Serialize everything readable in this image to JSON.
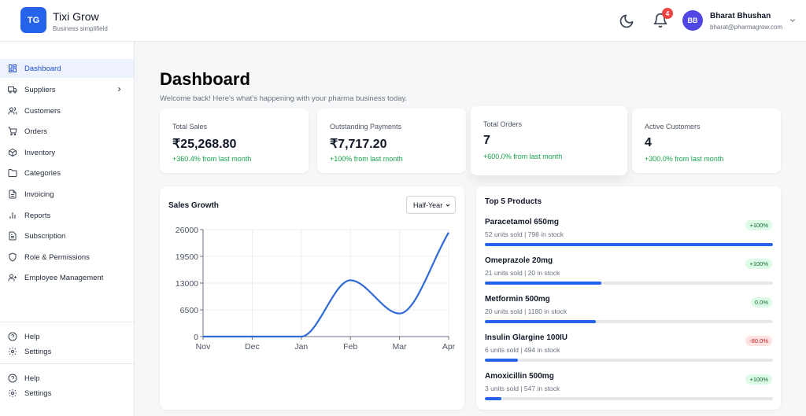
{
  "header": {
    "logo_initials": "TG",
    "brand_name": "Tixi Grow",
    "brand_tagline": "Business simplifield",
    "notification_count": "4",
    "user_initials": "BB",
    "user_name": "Bharat Bhushan",
    "user_email": "bharat@pharmagrow.com"
  },
  "sidebar": {
    "items": [
      {
        "label": "Dashboard",
        "icon": "dashboard-grid-icon",
        "active": true
      },
      {
        "label": "Suppliers",
        "icon": "truck-icon"
      },
      {
        "label": "Customers",
        "icon": "users-icon"
      },
      {
        "label": "Orders",
        "icon": "cart-icon"
      },
      {
        "label": "Inventory",
        "icon": "box-icon"
      },
      {
        "label": "Categories",
        "icon": "folder-icon"
      },
      {
        "label": "Invoicing",
        "icon": "document-icon"
      },
      {
        "label": "Reports",
        "icon": "bar-chart-icon"
      },
      {
        "label": "Subscription",
        "icon": "receipt-icon"
      },
      {
        "label": "Role & Permissions",
        "icon": "shield-icon"
      },
      {
        "label": "Employee Management",
        "icon": "user-plus-icon"
      }
    ],
    "footer_group_1": [
      {
        "label": "Help",
        "icon": "help-circle-icon"
      },
      {
        "label": "Settings",
        "icon": "gear-icon"
      }
    ],
    "footer_group_2": [
      {
        "label": "Help",
        "icon": "help-circle-icon"
      },
      {
        "label": "Settings",
        "icon": "gear-icon"
      }
    ]
  },
  "main": {
    "title": "Dashboard",
    "subtitle": "Welcome back! Here's what's happening with your pharma business today."
  },
  "stats": [
    {
      "label": "Total Sales",
      "value": "₹25,268.80",
      "change": "+360.4% from last month"
    },
    {
      "label": "Outstanding Payments",
      "value": "₹7,717.20",
      "change": "+100% from last month"
    },
    {
      "label": "Total Orders",
      "value": "7",
      "change": "+600.0% from last month"
    },
    {
      "label": "Active Customers",
      "value": "4",
      "change": "+300.0% from last month"
    }
  ],
  "sales_growth": {
    "title": "Sales Growth",
    "period": "Half-Year"
  },
  "chart_data": {
    "type": "line",
    "categories": [
      "Nov",
      "Dec",
      "Jan",
      "Feb",
      "Mar",
      "Apr"
    ],
    "values": [
      0,
      0,
      0,
      13700,
      5600,
      25300
    ],
    "yticks": [
      0,
      6500,
      13000,
      19500,
      26000
    ],
    "ylim": [
      0,
      26000
    ],
    "grid": true,
    "color": "#2f6bd6"
  },
  "top_products": {
    "title": "Top 5 Products",
    "items": [
      {
        "name": "Paracetamol 650mg",
        "meta": "52 units sold | 798 in stock",
        "badge": "+100%",
        "trend": "up",
        "share": 1.0
      },
      {
        "name": "Omeprazole 20mg",
        "meta": "21 units sold | 20 in stock",
        "badge": "+100%",
        "trend": "up",
        "share": 0.404
      },
      {
        "name": "Metformin 500mg",
        "meta": "20 units sold | 1180 in stock",
        "badge": "0.0%",
        "trend": "up",
        "share": 0.385
      },
      {
        "name": "Insulin Glargine 100IU",
        "meta": "6 units sold | 494 in stock",
        "badge": "-80.0%",
        "trend": "down",
        "share": 0.115
      },
      {
        "name": "Amoxicillin 500mg",
        "meta": "3 units sold | 547 in stock",
        "badge": "+100%",
        "trend": "up",
        "share": 0.058
      }
    ]
  }
}
